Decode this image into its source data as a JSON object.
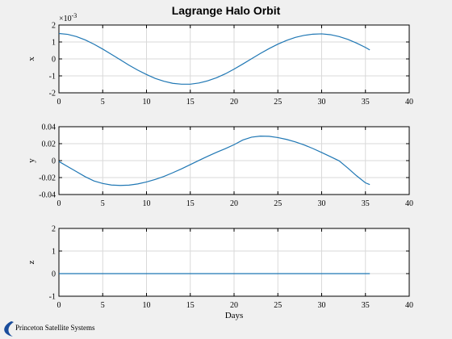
{
  "title": "Lagrange Halo Orbit",
  "logo": {
    "text": "Princeton Satellite Systems"
  },
  "style": {
    "line_color": "#1f77b4",
    "grid_color": "#d9d9d9",
    "background": "#f0f0f0",
    "axes_background": "#ffffff"
  },
  "chart_data": [
    {
      "type": "line",
      "ylabel": "x",
      "xlabel": "",
      "exponent_label": "×10",
      "exponent_power": "-3",
      "xlim": [
        0,
        40
      ],
      "ylim": [
        -2,
        2
      ],
      "x_ticks": [
        "0",
        "5",
        "10",
        "15",
        "20",
        "25",
        "30",
        "35",
        "40"
      ],
      "y_ticks": [
        "2",
        "1",
        "0",
        "-1",
        "-2"
      ],
      "grid": true,
      "x": [
        0,
        1,
        2,
        3,
        4,
        5,
        6,
        7,
        8,
        9,
        10,
        11,
        12,
        13,
        14,
        15,
        16,
        17,
        18,
        19,
        20,
        21,
        22,
        23,
        24,
        25,
        26,
        27,
        28,
        29,
        30,
        31,
        32,
        33,
        34,
        35,
        35.5
      ],
      "y": [
        1.5,
        1.45,
        1.32,
        1.12,
        0.87,
        0.58,
        0.27,
        -0.05,
        -0.37,
        -0.66,
        -0.92,
        -1.15,
        -1.32,
        -1.44,
        -1.49,
        -1.49,
        -1.42,
        -1.29,
        -1.11,
        -0.88,
        -0.6,
        -0.3,
        0.01,
        0.32,
        0.61,
        0.87,
        1.09,
        1.27,
        1.39,
        1.46,
        1.48,
        1.43,
        1.32,
        1.15,
        0.93,
        0.68,
        0.53
      ]
    },
    {
      "type": "line",
      "ylabel": "y",
      "xlabel": "",
      "xlim": [
        0,
        40
      ],
      "ylim": [
        -0.04,
        0.04
      ],
      "x_ticks": [
        "0",
        "5",
        "10",
        "15",
        "20",
        "25",
        "30",
        "35",
        "40"
      ],
      "y_ticks": [
        "0.04",
        "0.02",
        "0",
        "-0.02",
        "-0.04"
      ],
      "grid": true,
      "x": [
        0,
        1,
        2,
        3,
        4,
        5,
        6,
        7,
        8,
        9,
        10,
        11,
        12,
        13,
        14,
        15,
        16,
        17,
        18,
        19,
        20,
        21,
        22,
        23,
        24,
        25,
        26,
        27,
        28,
        29,
        30,
        31,
        32,
        33,
        34,
        35,
        35.5
      ],
      "y": [
        -0.001,
        -0.007,
        -0.013,
        -0.019,
        -0.024,
        -0.027,
        -0.0288,
        -0.0293,
        -0.0289,
        -0.0275,
        -0.0252,
        -0.0222,
        -0.0186,
        -0.0143,
        -0.0097,
        -0.0047,
        0.0003,
        0.0052,
        0.0098,
        0.0141,
        0.0188,
        0.0243,
        0.0277,
        0.0289,
        0.0287,
        0.0272,
        0.025,
        0.0221,
        0.0185,
        0.0143,
        0.0096,
        0.0047,
        -0.0003,
        -0.0089,
        -0.018,
        -0.0262,
        -0.0283
      ]
    },
    {
      "type": "line",
      "ylabel": "z",
      "xlabel": "Days",
      "xlim": [
        0,
        40
      ],
      "ylim": [
        -1,
        2
      ],
      "x_ticks": [
        "0",
        "5",
        "10",
        "15",
        "20",
        "25",
        "30",
        "35",
        "40"
      ],
      "y_ticks": [
        "2",
        "1",
        "0",
        "-1"
      ],
      "grid": true,
      "x": [
        0,
        35.5
      ],
      "y": [
        0,
        0
      ]
    }
  ]
}
